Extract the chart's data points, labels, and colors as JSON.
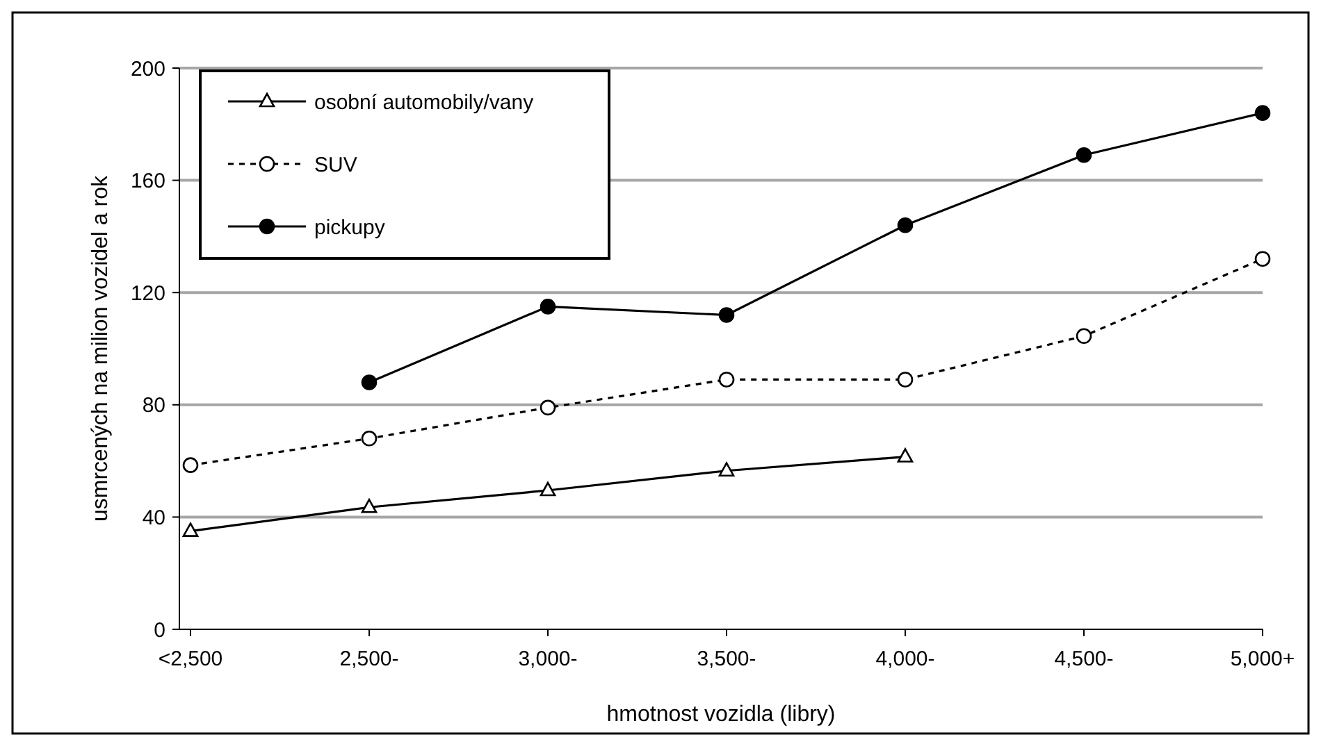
{
  "chart_data": {
    "type": "line",
    "xlabel": "hmotnost vozidla (libry)",
    "ylabel": "usmrcených na milion vozidel a rok",
    "categories": [
      "<2,500",
      "2,500-",
      "3,000-",
      "3,500-",
      "4,000-",
      "4,500-",
      "5,000+"
    ],
    "ylim": [
      0,
      200
    ],
    "yticks": [
      0,
      40,
      80,
      120,
      160,
      200
    ],
    "grid": "y",
    "legend": "top left",
    "series": [
      {
        "name": "osobní automobily/vany",
        "color": "#000000",
        "marker": "triangle",
        "line_style": "solid",
        "values": [
          35,
          43.5,
          49.5,
          56.5,
          61.5,
          null,
          null
        ]
      },
      {
        "name": "SUV",
        "color": "#000000",
        "marker": "circle",
        "line_style": "dashed",
        "values": [
          58.5,
          68,
          79,
          89,
          89,
          104.5,
          132
        ]
      },
      {
        "name": "pickupy",
        "color": "#000000",
        "marker": "circle",
        "line_style": "solid",
        "values": [
          null,
          88,
          115,
          112,
          144,
          169,
          184
        ]
      }
    ]
  }
}
